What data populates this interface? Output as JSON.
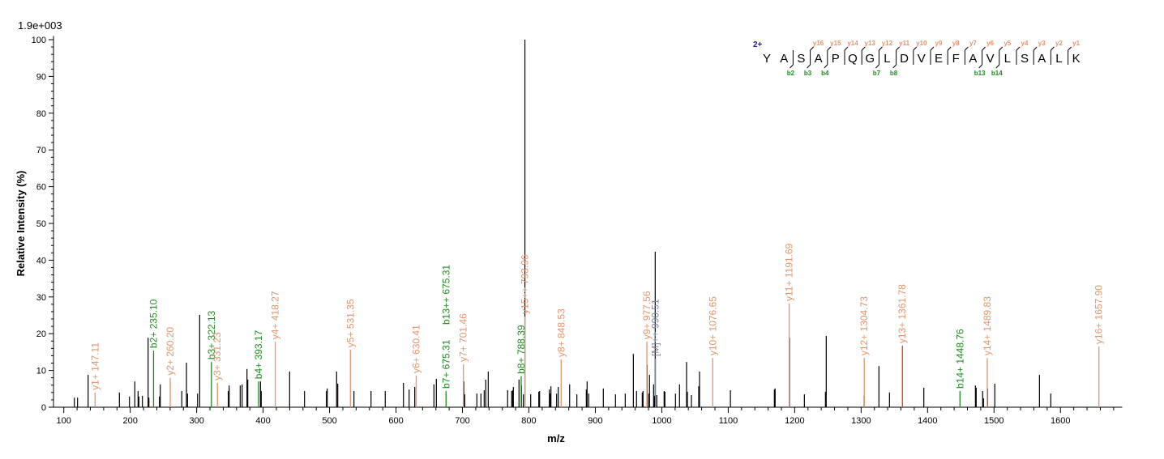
{
  "chart_data": {
    "type": "bar",
    "scale_label": "1.9e+003",
    "xlabel": "m/z",
    "ylabel": "Relative  Intensity (%)",
    "xlim": [
      84.5,
      1693
    ],
    "ylim": [
      0,
      100
    ],
    "xticks": [
      100,
      200,
      300,
      400,
      500,
      600,
      700,
      800,
      900,
      1000,
      1100,
      1200,
      1300,
      1400,
      1500,
      1600
    ],
    "yticks": [
      0,
      10,
      20,
      30,
      40,
      50,
      60,
      70,
      80,
      90,
      100
    ],
    "grid": false,
    "colors": {
      "unassigned": "#000000",
      "y": "#E5946A",
      "b": "#1F8A1F",
      "M": "#7D8798",
      "charge": "#1A1A9A"
    },
    "peaks": [
      [
        115.9,
        2.6
      ],
      [
        120.7,
        2.6
      ],
      [
        136.6,
        8.8
      ],
      [
        183.7,
        4.0
      ],
      [
        198.8,
        2.9
      ],
      [
        206.9,
        7.0
      ],
      [
        211.8,
        4.4
      ],
      [
        213.0,
        2.9
      ],
      [
        218.3,
        3.1
      ],
      [
        226.9,
        18.9
      ],
      [
        228.1,
        2.6
      ],
      [
        244.0,
        2.9
      ],
      [
        245.2,
        6.2
      ],
      [
        277.6,
        4.4
      ],
      [
        284.6,
        12.1
      ],
      [
        286.2,
        3.7
      ],
      [
        301.3,
        3.7
      ],
      [
        304.5,
        25.1
      ],
      [
        347.6,
        4.4
      ],
      [
        348.9,
        5.9
      ],
      [
        365.5,
        5.9
      ],
      [
        368.4,
        6.2
      ],
      [
        375.7,
        10.4
      ],
      [
        376.9,
        7.5
      ],
      [
        396.0,
        7.0
      ],
      [
        397.2,
        4.4
      ],
      [
        439.9,
        9.7
      ],
      [
        462.3,
        4.4
      ],
      [
        495.3,
        4.4
      ],
      [
        496.5,
        5.1
      ],
      [
        510.6,
        9.7
      ],
      [
        512.3,
        6.4
      ],
      [
        536.7,
        4.4
      ],
      [
        562.4,
        4.4
      ],
      [
        583.8,
        4.4
      ],
      [
        611.2,
        6.6
      ],
      [
        619.7,
        4.8
      ],
      [
        628.2,
        5.5
      ],
      [
        657.1,
        6.2
      ],
      [
        660.7,
        7.7
      ],
      [
        702.2,
        7.0
      ],
      [
        703.4,
        3.5
      ],
      [
        721.7,
        3.7
      ],
      [
        727.8,
        3.7
      ],
      [
        732.7,
        4.6
      ],
      [
        735.1,
        7.5
      ],
      [
        738.8,
        9.7
      ],
      [
        768.0,
        4.6
      ],
      [
        774.1,
        4.4
      ],
      [
        775.4,
        4.6
      ],
      [
        776.6,
        5.5
      ],
      [
        785.1,
        7.5
      ],
      [
        788.8,
        5.9
      ],
      [
        791.7,
        3.5
      ],
      [
        794.0,
        100
      ],
      [
        802.7,
        3.5
      ],
      [
        814.9,
        4.2
      ],
      [
        816.1,
        4.4
      ],
      [
        830.8,
        4.8
      ],
      [
        832.0,
        3.7
      ],
      [
        833.2,
        5.7
      ],
      [
        841.7,
        3.7
      ],
      [
        844.2,
        5.5
      ],
      [
        861.3,
        6.2
      ],
      [
        872.2,
        3.5
      ],
      [
        886.4,
        4.8
      ],
      [
        887.6,
        7.0
      ],
      [
        890.1,
        3.7
      ],
      [
        912.0,
        5.1
      ],
      [
        930.3,
        3.5
      ],
      [
        945.0,
        3.7
      ],
      [
        957.2,
        14.5
      ],
      [
        962.0,
        4.4
      ],
      [
        970.6,
        4.0
      ],
      [
        971.8,
        4.4
      ],
      [
        977.9,
        11.5
      ],
      [
        980.3,
        3.7
      ],
      [
        981.5,
        8.8
      ],
      [
        987.7,
        6.2
      ],
      [
        988.9,
        3.1
      ],
      [
        990.1,
        42.3
      ],
      [
        992.5,
        3.3
      ],
      [
        1003.5,
        4.4
      ],
      [
        1004.7,
        4.2
      ],
      [
        1020.6,
        3.7
      ],
      [
        1026.7,
        6.2
      ],
      [
        1037.3,
        12.3
      ],
      [
        1038.5,
        4.2
      ],
      [
        1044.6,
        3.3
      ],
      [
        1055.6,
        5.7
      ],
      [
        1056.8,
        9.7
      ],
      [
        1103.3,
        4.6
      ],
      [
        1169.4,
        4.8
      ],
      [
        1170.6,
        5.1
      ],
      [
        1192.2,
        18.9
      ],
      [
        1214.6,
        3.5
      ],
      [
        1246.3,
        4.2
      ],
      [
        1247.5,
        19.4
      ],
      [
        1304.5,
        3.1
      ],
      [
        1326.8,
        11.2
      ],
      [
        1342.7,
        4.0
      ],
      [
        1362.2,
        16.7
      ],
      [
        1394.4,
        5.3
      ],
      [
        1472.0,
        5.9
      ],
      [
        1473.2,
        5.3
      ],
      [
        1482.9,
        4.4
      ],
      [
        1484.2,
        2.4
      ],
      [
        1490.3,
        5.1
      ],
      [
        1501.2,
        6.4
      ],
      [
        1568.4,
        8.8
      ],
      [
        1585.5,
        3.7
      ]
    ],
    "annotations": [
      {
        "type": "y",
        "mz": 147.11,
        "intensity": 4.0,
        "labels": [
          "y1+ 147.11"
        ]
      },
      {
        "type": "b",
        "mz": 235.1,
        "intensity": 15.4,
        "labels": [
          "b2+ 235.10"
        ]
      },
      {
        "type": "y",
        "mz": 260.2,
        "intensity": 8.0,
        "labels": [
          "y2+ 260.20"
        ]
      },
      {
        "type": "b",
        "mz": 322.13,
        "intensity": 12.3,
        "labels": [
          "b3+ 322.13"
        ]
      },
      {
        "type": "y",
        "mz": 331.23,
        "intensity": 6.6,
        "labels": [
          "y3+ 331.23"
        ]
      },
      {
        "type": "b",
        "mz": 393.17,
        "intensity": 7.0,
        "labels": [
          "b4+ 393.17"
        ]
      },
      {
        "type": "y",
        "mz": 418.27,
        "intensity": 17.8,
        "labels": [
          "y4+ 418.27"
        ]
      },
      {
        "type": "y",
        "mz": 531.35,
        "intensity": 15.6,
        "labels": [
          "y5+ 531.35"
        ]
      },
      {
        "type": "y",
        "mz": 630.41,
        "intensity": 8.6,
        "labels": [
          "y6+ 630.41"
        ]
      },
      {
        "type": "b",
        "mz": 675.31,
        "intensity": 4.4,
        "labels": [
          "b7+ 675.31",
          "b13++ 675.31"
        ]
      },
      {
        "type": "y",
        "mz": 701.46,
        "intensity": 11.7,
        "labels": [
          "y7+ 701.46"
        ]
      },
      {
        "type": "b",
        "mz": 788.39,
        "intensity": 8.4,
        "labels": [
          "b8+ 788.39"
        ]
      },
      {
        "type": "y",
        "mz": 793.96,
        "intensity": 24.7,
        "labels": [
          "y15++ 793.96"
        ]
      },
      {
        "type": "y",
        "mz": 848.53,
        "intensity": 13.0,
        "labels": [
          "y8+ 848.53"
        ]
      },
      {
        "type": "y",
        "mz": 977.56,
        "intensity": 17.8,
        "labels": [
          "y9+ 977.56"
        ]
      },
      {
        "type": "M",
        "mz": 990.51,
        "intensity": 13.2,
        "labels": [
          "[M]++ 990.51"
        ]
      },
      {
        "type": "y",
        "mz": 1076.65,
        "intensity": 13.4,
        "labels": [
          "y10+ 1076.65"
        ]
      },
      {
        "type": "y",
        "mz": 1191.69,
        "intensity": 28.2,
        "labels": [
          "y11+ 1191.69"
        ]
      },
      {
        "type": "y",
        "mz": 1304.73,
        "intensity": 13.4,
        "labels": [
          "y12+ 1304.73"
        ]
      },
      {
        "type": "y",
        "mz": 1361.78,
        "intensity": 16.7,
        "labels": [
          "y13+ 1361.78"
        ]
      },
      {
        "type": "b",
        "mz": 1448.76,
        "intensity": 4.4,
        "labels": [
          "b14+ 1448.76"
        ]
      },
      {
        "type": "y",
        "mz": 1489.83,
        "intensity": 13.4,
        "labels": [
          "y14+ 1489.83"
        ]
      },
      {
        "type": "y",
        "mz": 1657.9,
        "intensity": 16.5,
        "labels": [
          "y16+ 1657.90"
        ]
      }
    ],
    "sequence": {
      "charge": "2+",
      "residues": [
        "Y",
        "A",
        "S",
        "A",
        "P",
        "Q",
        "G",
        "L",
        "D",
        "V",
        "E",
        "F",
        "A",
        "V",
        "L",
        "S",
        "A",
        "L",
        "K"
      ],
      "cleavages": [
        {
          "before": 2,
          "b": "b2"
        },
        {
          "before": 3,
          "y": "y16",
          "b": "b3"
        },
        {
          "before": 4,
          "y": "y15",
          "b": "b4"
        },
        {
          "before": 5,
          "y": "y14"
        },
        {
          "before": 6,
          "y": "y13"
        },
        {
          "before": 7,
          "y": "y12",
          "b": "b7"
        },
        {
          "before": 8,
          "y": "y11",
          "b": "b8"
        },
        {
          "before": 9,
          "y": "y10"
        },
        {
          "before": 10,
          "y": "y9"
        },
        {
          "before": 11,
          "y": "y8"
        },
        {
          "before": 12,
          "y": "y7"
        },
        {
          "before": 13,
          "y": "y6",
          "b": "b13"
        },
        {
          "before": 14,
          "y": "y5",
          "b": "b14"
        },
        {
          "before": 15,
          "y": "y4"
        },
        {
          "before": 16,
          "y": "y3"
        },
        {
          "before": 17,
          "y": "y2"
        },
        {
          "before": 18,
          "y": "y1"
        }
      ]
    }
  }
}
